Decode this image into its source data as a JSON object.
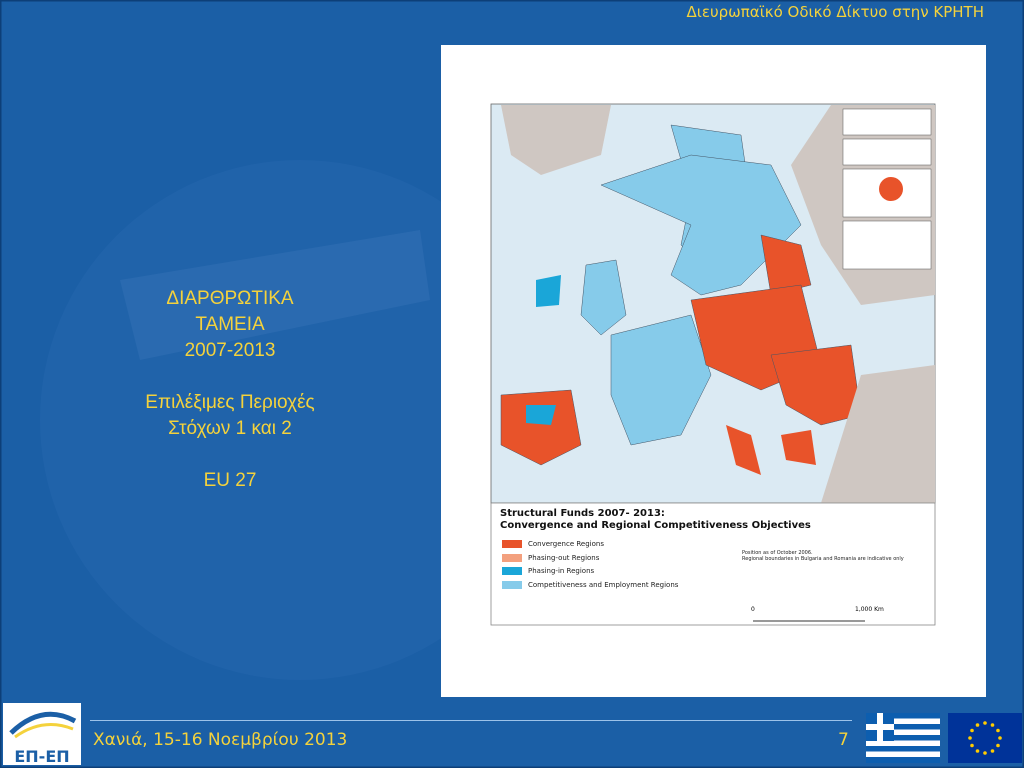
{
  "header": {
    "title": "Διευρωπαϊκό Οδικό Δίκτυο στην ΚΡΗΤΗ"
  },
  "body": {
    "lines": [
      "ΔΙΑΡΘΡΩΤΙΚΑ",
      "ΤΑΜΕΙΑ",
      "2007-2013",
      "Επιλέξιμες Περιοχές",
      "Στόχων 1 και 2",
      "EU 27"
    ]
  },
  "map": {
    "title": "Structural Funds 2007- 2013:",
    "subtitle": "Convergence and Regional Competitiveness Objectives",
    "legend": [
      {
        "label": "Convergence Regions",
        "color": "#e8532a"
      },
      {
        "label": "Phasing-out Regions",
        "color": "#f3a07e"
      },
      {
        "label": "Phasing-in Regions",
        "color": "#1aa6d8"
      },
      {
        "label": "Competitiveness and Employment Regions",
        "color": "#86cbea"
      }
    ],
    "note": [
      "Position as of October 2006.",
      "Regional boundaries in Bulgaria and Romania are indicative only"
    ],
    "scale": [
      "0",
      "1,000 Km"
    ]
  },
  "footer": {
    "place_date": "Χανιά, 15-16 Νοεμβρίου 2013",
    "page": "7",
    "logo": "ΕΠ-ΕΠ"
  }
}
